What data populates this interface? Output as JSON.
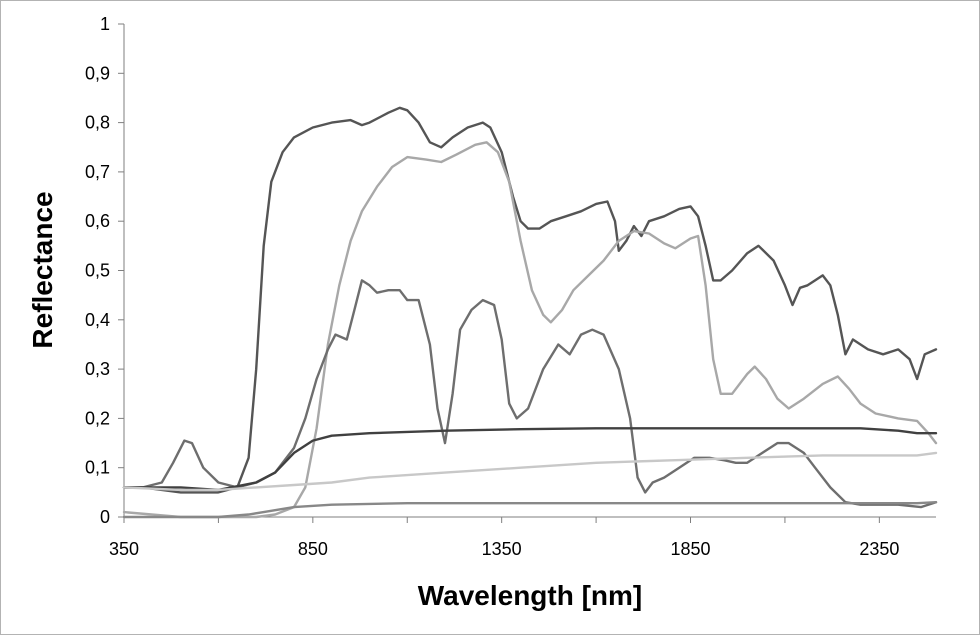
{
  "chart_data": {
    "type": "line",
    "xlabel": "Wavelength [nm]",
    "ylabel": "Reflectance",
    "xlim": [
      350,
      2500
    ],
    "ylim": [
      0,
      1
    ],
    "x_ticks": [
      "350",
      "850",
      "1350",
      "1850",
      "2350"
    ],
    "y_ticks": [
      "0",
      "0,1",
      "0,2",
      "0,3",
      "0,4",
      "0,5",
      "0,6",
      "0,7",
      "0,8",
      "0,9",
      "1"
    ],
    "grid": false,
    "legend": "none",
    "series": [
      {
        "color": "#555555",
        "points": [
          [
            350,
            0.06
          ],
          [
            400,
            0.06
          ],
          [
            500,
            0.05
          ],
          [
            600,
            0.05
          ],
          [
            650,
            0.06
          ],
          [
            680,
            0.12
          ],
          [
            700,
            0.3
          ],
          [
            720,
            0.55
          ],
          [
            740,
            0.68
          ],
          [
            770,
            0.74
          ],
          [
            800,
            0.77
          ],
          [
            850,
            0.79
          ],
          [
            900,
            0.8
          ],
          [
            950,
            0.805
          ],
          [
            980,
            0.795
          ],
          [
            1000,
            0.8
          ],
          [
            1050,
            0.82
          ],
          [
            1080,
            0.83
          ],
          [
            1100,
            0.825
          ],
          [
            1130,
            0.8
          ],
          [
            1160,
            0.76
          ],
          [
            1190,
            0.75
          ],
          [
            1220,
            0.77
          ],
          [
            1260,
            0.79
          ],
          [
            1300,
            0.8
          ],
          [
            1320,
            0.79
          ],
          [
            1350,
            0.74
          ],
          [
            1380,
            0.65
          ],
          [
            1400,
            0.6
          ],
          [
            1420,
            0.585
          ],
          [
            1450,
            0.585
          ],
          [
            1480,
            0.6
          ],
          [
            1520,
            0.61
          ],
          [
            1560,
            0.62
          ],
          [
            1600,
            0.635
          ],
          [
            1630,
            0.64
          ],
          [
            1650,
            0.6
          ],
          [
            1660,
            0.54
          ],
          [
            1680,
            0.56
          ],
          [
            1700,
            0.59
          ],
          [
            1720,
            0.57
          ],
          [
            1740,
            0.6
          ],
          [
            1780,
            0.61
          ],
          [
            1820,
            0.625
          ],
          [
            1850,
            0.63
          ],
          [
            1870,
            0.61
          ],
          [
            1890,
            0.55
          ],
          [
            1910,
            0.48
          ],
          [
            1930,
            0.48
          ],
          [
            1960,
            0.5
          ],
          [
            2000,
            0.535
          ],
          [
            2030,
            0.55
          ],
          [
            2070,
            0.52
          ],
          [
            2100,
            0.47
          ],
          [
            2120,
            0.43
          ],
          [
            2140,
            0.465
          ],
          [
            2160,
            0.47
          ],
          [
            2180,
            0.48
          ],
          [
            2200,
            0.49
          ],
          [
            2220,
            0.47
          ],
          [
            2240,
            0.41
          ],
          [
            2260,
            0.33
          ],
          [
            2280,
            0.36
          ],
          [
            2320,
            0.34
          ],
          [
            2360,
            0.33
          ],
          [
            2400,
            0.34
          ],
          [
            2430,
            0.32
          ],
          [
            2450,
            0.28
          ],
          [
            2470,
            0.33
          ],
          [
            2500,
            0.34
          ]
        ]
      },
      {
        "color": "#a8a8a8",
        "points": [
          [
            350,
            0.01
          ],
          [
            500,
            0.0
          ],
          [
            600,
            0.0
          ],
          [
            700,
            0.0
          ],
          [
            750,
            0.005
          ],
          [
            800,
            0.02
          ],
          [
            830,
            0.06
          ],
          [
            860,
            0.18
          ],
          [
            890,
            0.35
          ],
          [
            920,
            0.47
          ],
          [
            950,
            0.56
          ],
          [
            980,
            0.62
          ],
          [
            1020,
            0.67
          ],
          [
            1060,
            0.71
          ],
          [
            1100,
            0.73
          ],
          [
            1150,
            0.725
          ],
          [
            1190,
            0.72
          ],
          [
            1230,
            0.735
          ],
          [
            1280,
            0.755
          ],
          [
            1310,
            0.76
          ],
          [
            1340,
            0.74
          ],
          [
            1370,
            0.68
          ],
          [
            1400,
            0.56
          ],
          [
            1430,
            0.46
          ],
          [
            1460,
            0.41
          ],
          [
            1480,
            0.395
          ],
          [
            1510,
            0.42
          ],
          [
            1540,
            0.46
          ],
          [
            1580,
            0.49
          ],
          [
            1620,
            0.52
          ],
          [
            1660,
            0.56
          ],
          [
            1700,
            0.58
          ],
          [
            1740,
            0.575
          ],
          [
            1780,
            0.555
          ],
          [
            1810,
            0.545
          ],
          [
            1850,
            0.565
          ],
          [
            1870,
            0.57
          ],
          [
            1890,
            0.47
          ],
          [
            1910,
            0.32
          ],
          [
            1930,
            0.25
          ],
          [
            1960,
            0.25
          ],
          [
            2000,
            0.29
          ],
          [
            2020,
            0.305
          ],
          [
            2050,
            0.28
          ],
          [
            2080,
            0.24
          ],
          [
            2110,
            0.22
          ],
          [
            2150,
            0.24
          ],
          [
            2200,
            0.27
          ],
          [
            2240,
            0.285
          ],
          [
            2270,
            0.26
          ],
          [
            2300,
            0.23
          ],
          [
            2340,
            0.21
          ],
          [
            2400,
            0.2
          ],
          [
            2450,
            0.195
          ],
          [
            2480,
            0.17
          ],
          [
            2500,
            0.15
          ]
        ]
      },
      {
        "color": "#6e6e6e",
        "points": [
          [
            350,
            0.06
          ],
          [
            400,
            0.06
          ],
          [
            450,
            0.07
          ],
          [
            480,
            0.11
          ],
          [
            510,
            0.155
          ],
          [
            530,
            0.15
          ],
          [
            560,
            0.1
          ],
          [
            600,
            0.07
          ],
          [
            650,
            0.06
          ],
          [
            700,
            0.07
          ],
          [
            750,
            0.09
          ],
          [
            800,
            0.14
          ],
          [
            830,
            0.2
          ],
          [
            860,
            0.28
          ],
          [
            890,
            0.34
          ],
          [
            910,
            0.37
          ],
          [
            940,
            0.36
          ],
          [
            960,
            0.42
          ],
          [
            980,
            0.48
          ],
          [
            1000,
            0.47
          ],
          [
            1020,
            0.455
          ],
          [
            1050,
            0.46
          ],
          [
            1080,
            0.46
          ],
          [
            1100,
            0.44
          ],
          [
            1130,
            0.44
          ],
          [
            1160,
            0.35
          ],
          [
            1180,
            0.22
          ],
          [
            1200,
            0.15
          ],
          [
            1220,
            0.25
          ],
          [
            1240,
            0.38
          ],
          [
            1270,
            0.42
          ],
          [
            1300,
            0.44
          ],
          [
            1330,
            0.43
          ],
          [
            1350,
            0.36
          ],
          [
            1370,
            0.23
          ],
          [
            1390,
            0.2
          ],
          [
            1420,
            0.22
          ],
          [
            1460,
            0.3
          ],
          [
            1500,
            0.35
          ],
          [
            1530,
            0.33
          ],
          [
            1560,
            0.37
          ],
          [
            1590,
            0.38
          ],
          [
            1620,
            0.37
          ],
          [
            1660,
            0.3
          ],
          [
            1690,
            0.2
          ],
          [
            1710,
            0.08
          ],
          [
            1730,
            0.05
          ],
          [
            1750,
            0.07
          ],
          [
            1780,
            0.08
          ],
          [
            1820,
            0.1
          ],
          [
            1860,
            0.12
          ],
          [
            1900,
            0.12
          ],
          [
            1940,
            0.115
          ],
          [
            1970,
            0.11
          ],
          [
            2000,
            0.11
          ],
          [
            2040,
            0.13
          ],
          [
            2080,
            0.15
          ],
          [
            2110,
            0.15
          ],
          [
            2150,
            0.13
          ],
          [
            2180,
            0.1
          ],
          [
            2220,
            0.06
          ],
          [
            2260,
            0.03
          ],
          [
            2300,
            0.025
          ],
          [
            2400,
            0.025
          ],
          [
            2460,
            0.02
          ],
          [
            2500,
            0.03
          ]
        ]
      },
      {
        "color": "#404040",
        "points": [
          [
            350,
            0.06
          ],
          [
            500,
            0.06
          ],
          [
            600,
            0.055
          ],
          [
            700,
            0.07
          ],
          [
            750,
            0.09
          ],
          [
            800,
            0.13
          ],
          [
            850,
            0.155
          ],
          [
            900,
            0.165
          ],
          [
            1000,
            0.17
          ],
          [
            1200,
            0.175
          ],
          [
            1400,
            0.178
          ],
          [
            1600,
            0.18
          ],
          [
            1800,
            0.18
          ],
          [
            2000,
            0.18
          ],
          [
            2200,
            0.18
          ],
          [
            2300,
            0.18
          ],
          [
            2400,
            0.175
          ],
          [
            2450,
            0.17
          ],
          [
            2500,
            0.17
          ]
        ]
      },
      {
        "color": "#c8c8c8",
        "points": [
          [
            350,
            0.06
          ],
          [
            500,
            0.055
          ],
          [
            600,
            0.055
          ],
          [
            700,
            0.06
          ],
          [
            800,
            0.065
          ],
          [
            900,
            0.07
          ],
          [
            1000,
            0.08
          ],
          [
            1200,
            0.09
          ],
          [
            1400,
            0.1
          ],
          [
            1600,
            0.11
          ],
          [
            1800,
            0.115
          ],
          [
            2000,
            0.12
          ],
          [
            2200,
            0.125
          ],
          [
            2350,
            0.125
          ],
          [
            2450,
            0.125
          ],
          [
            2500,
            0.13
          ]
        ]
      },
      {
        "color": "#888888",
        "points": [
          [
            350,
            0.0
          ],
          [
            600,
            0.0
          ],
          [
            680,
            0.005
          ],
          [
            720,
            0.01
          ],
          [
            760,
            0.015
          ],
          [
            800,
            0.02
          ],
          [
            900,
            0.025
          ],
          [
            1100,
            0.028
          ],
          [
            1500,
            0.028
          ],
          [
            1900,
            0.028
          ],
          [
            2300,
            0.028
          ],
          [
            2450,
            0.028
          ],
          [
            2500,
            0.03
          ]
        ]
      }
    ]
  }
}
